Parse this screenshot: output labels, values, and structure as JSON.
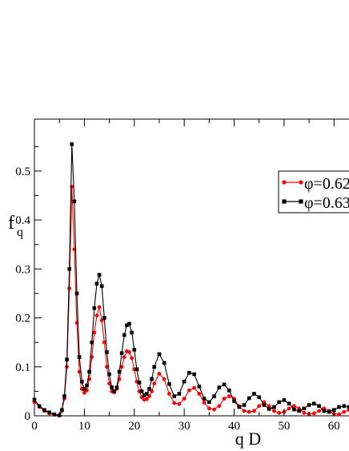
{
  "chart_data": {
    "type": "line",
    "title": "",
    "xlabel": "q D",
    "ylabel_main": "f",
    "ylabel_sub": "q",
    "xlim": [
      0,
      63
    ],
    "ylim": [
      0,
      0.6
    ],
    "xticks": [
      0,
      10,
      20,
      30,
      40,
      50,
      60
    ],
    "yticks": [
      0,
      0.1,
      0.2,
      0.3,
      0.4,
      0.5
    ],
    "ytick_labels": [
      "0",
      "0.1",
      "0.2",
      "0.3",
      "0.4",
      "0.5"
    ],
    "grid": false,
    "legend_position": "right",
    "series": [
      {
        "name": "φ=0.62",
        "color": "#ff0000",
        "marker": "circle",
        "x": [
          0,
          1,
          2,
          3,
          4,
          5,
          5.5,
          6,
          6.5,
          7,
          7.5,
          8,
          8.5,
          9,
          9.5,
          10,
          10.5,
          11,
          11.5,
          12,
          12.5,
          13,
          13.5,
          14,
          14.5,
          15,
          15.5,
          16,
          16.5,
          17,
          17.5,
          18,
          18.5,
          19,
          19.5,
          20,
          20.5,
          21,
          21.5,
          22,
          22.5,
          23,
          23.5,
          24,
          25,
          26,
          27,
          28,
          29,
          30,
          31,
          32,
          33,
          34,
          35,
          36,
          37,
          38,
          39,
          40,
          41,
          42,
          43,
          44,
          45,
          46,
          47,
          48,
          49,
          50,
          51,
          52,
          53,
          54,
          55,
          56,
          57,
          58,
          59,
          60,
          61,
          62,
          63
        ],
        "y": [
          0.028,
          0.018,
          0.01,
          0.005,
          0.002,
          0.001,
          0.01,
          0.035,
          0.1,
          0.26,
          0.468,
          0.34,
          0.19,
          0.09,
          0.055,
          0.047,
          0.052,
          0.075,
          0.12,
          0.17,
          0.205,
          0.222,
          0.195,
          0.15,
          0.1,
          0.066,
          0.05,
          0.048,
          0.055,
          0.075,
          0.1,
          0.12,
          0.132,
          0.13,
          0.118,
          0.095,
          0.07,
          0.05,
          0.038,
          0.033,
          0.034,
          0.04,
          0.05,
          0.066,
          0.086,
          0.075,
          0.045,
          0.026,
          0.024,
          0.035,
          0.052,
          0.057,
          0.045,
          0.027,
          0.015,
          0.013,
          0.02,
          0.035,
          0.04,
          0.035,
          0.02,
          0.01,
          0.008,
          0.01,
          0.02,
          0.028,
          0.02,
          0.01,
          0.006,
          0.008,
          0.015,
          0.02,
          0.015,
          0.006,
          0.004,
          0.005,
          0.01,
          0.015,
          0.01,
          0.004,
          0.003,
          0.008,
          0.012
        ]
      },
      {
        "name": "φ=0.63",
        "color": "#000000",
        "marker": "square",
        "x": [
          0,
          1,
          2,
          3,
          4,
          5,
          5.5,
          6,
          6.5,
          7,
          7.5,
          8,
          8.5,
          9,
          9.5,
          10,
          10.5,
          11,
          11.5,
          12,
          12.5,
          13,
          13.5,
          14,
          14.5,
          15,
          15.5,
          16,
          16.5,
          17,
          17.5,
          18,
          18.5,
          19,
          19.5,
          20,
          20.5,
          21,
          21.5,
          22,
          22.5,
          23,
          23.5,
          24,
          25,
          26,
          27,
          28,
          29,
          30,
          31,
          32,
          33,
          34,
          35,
          36,
          37,
          38,
          39,
          40,
          41,
          42,
          43,
          44,
          45,
          46,
          47,
          48,
          49,
          50,
          51,
          52,
          53,
          54,
          55,
          56,
          57,
          58,
          59,
          60,
          61,
          62,
          63
        ],
        "y": [
          0.033,
          0.02,
          0.012,
          0.007,
          0.003,
          0.001,
          0.012,
          0.04,
          0.115,
          0.3,
          0.555,
          0.438,
          0.25,
          0.12,
          0.07,
          0.055,
          0.062,
          0.09,
          0.15,
          0.22,
          0.27,
          0.288,
          0.265,
          0.2,
          0.13,
          0.085,
          0.058,
          0.05,
          0.058,
          0.09,
          0.128,
          0.165,
          0.185,
          0.188,
          0.17,
          0.135,
          0.095,
          0.068,
          0.05,
          0.042,
          0.045,
          0.055,
          0.075,
          0.1,
          0.126,
          0.108,
          0.065,
          0.04,
          0.045,
          0.07,
          0.088,
          0.085,
          0.06,
          0.035,
          0.028,
          0.04,
          0.058,
          0.064,
          0.052,
          0.03,
          0.018,
          0.022,
          0.036,
          0.045,
          0.038,
          0.022,
          0.014,
          0.018,
          0.028,
          0.032,
          0.025,
          0.013,
          0.01,
          0.015,
          0.022,
          0.025,
          0.02,
          0.01,
          0.008,
          0.012,
          0.018,
          0.02,
          0.018
        ]
      }
    ]
  }
}
